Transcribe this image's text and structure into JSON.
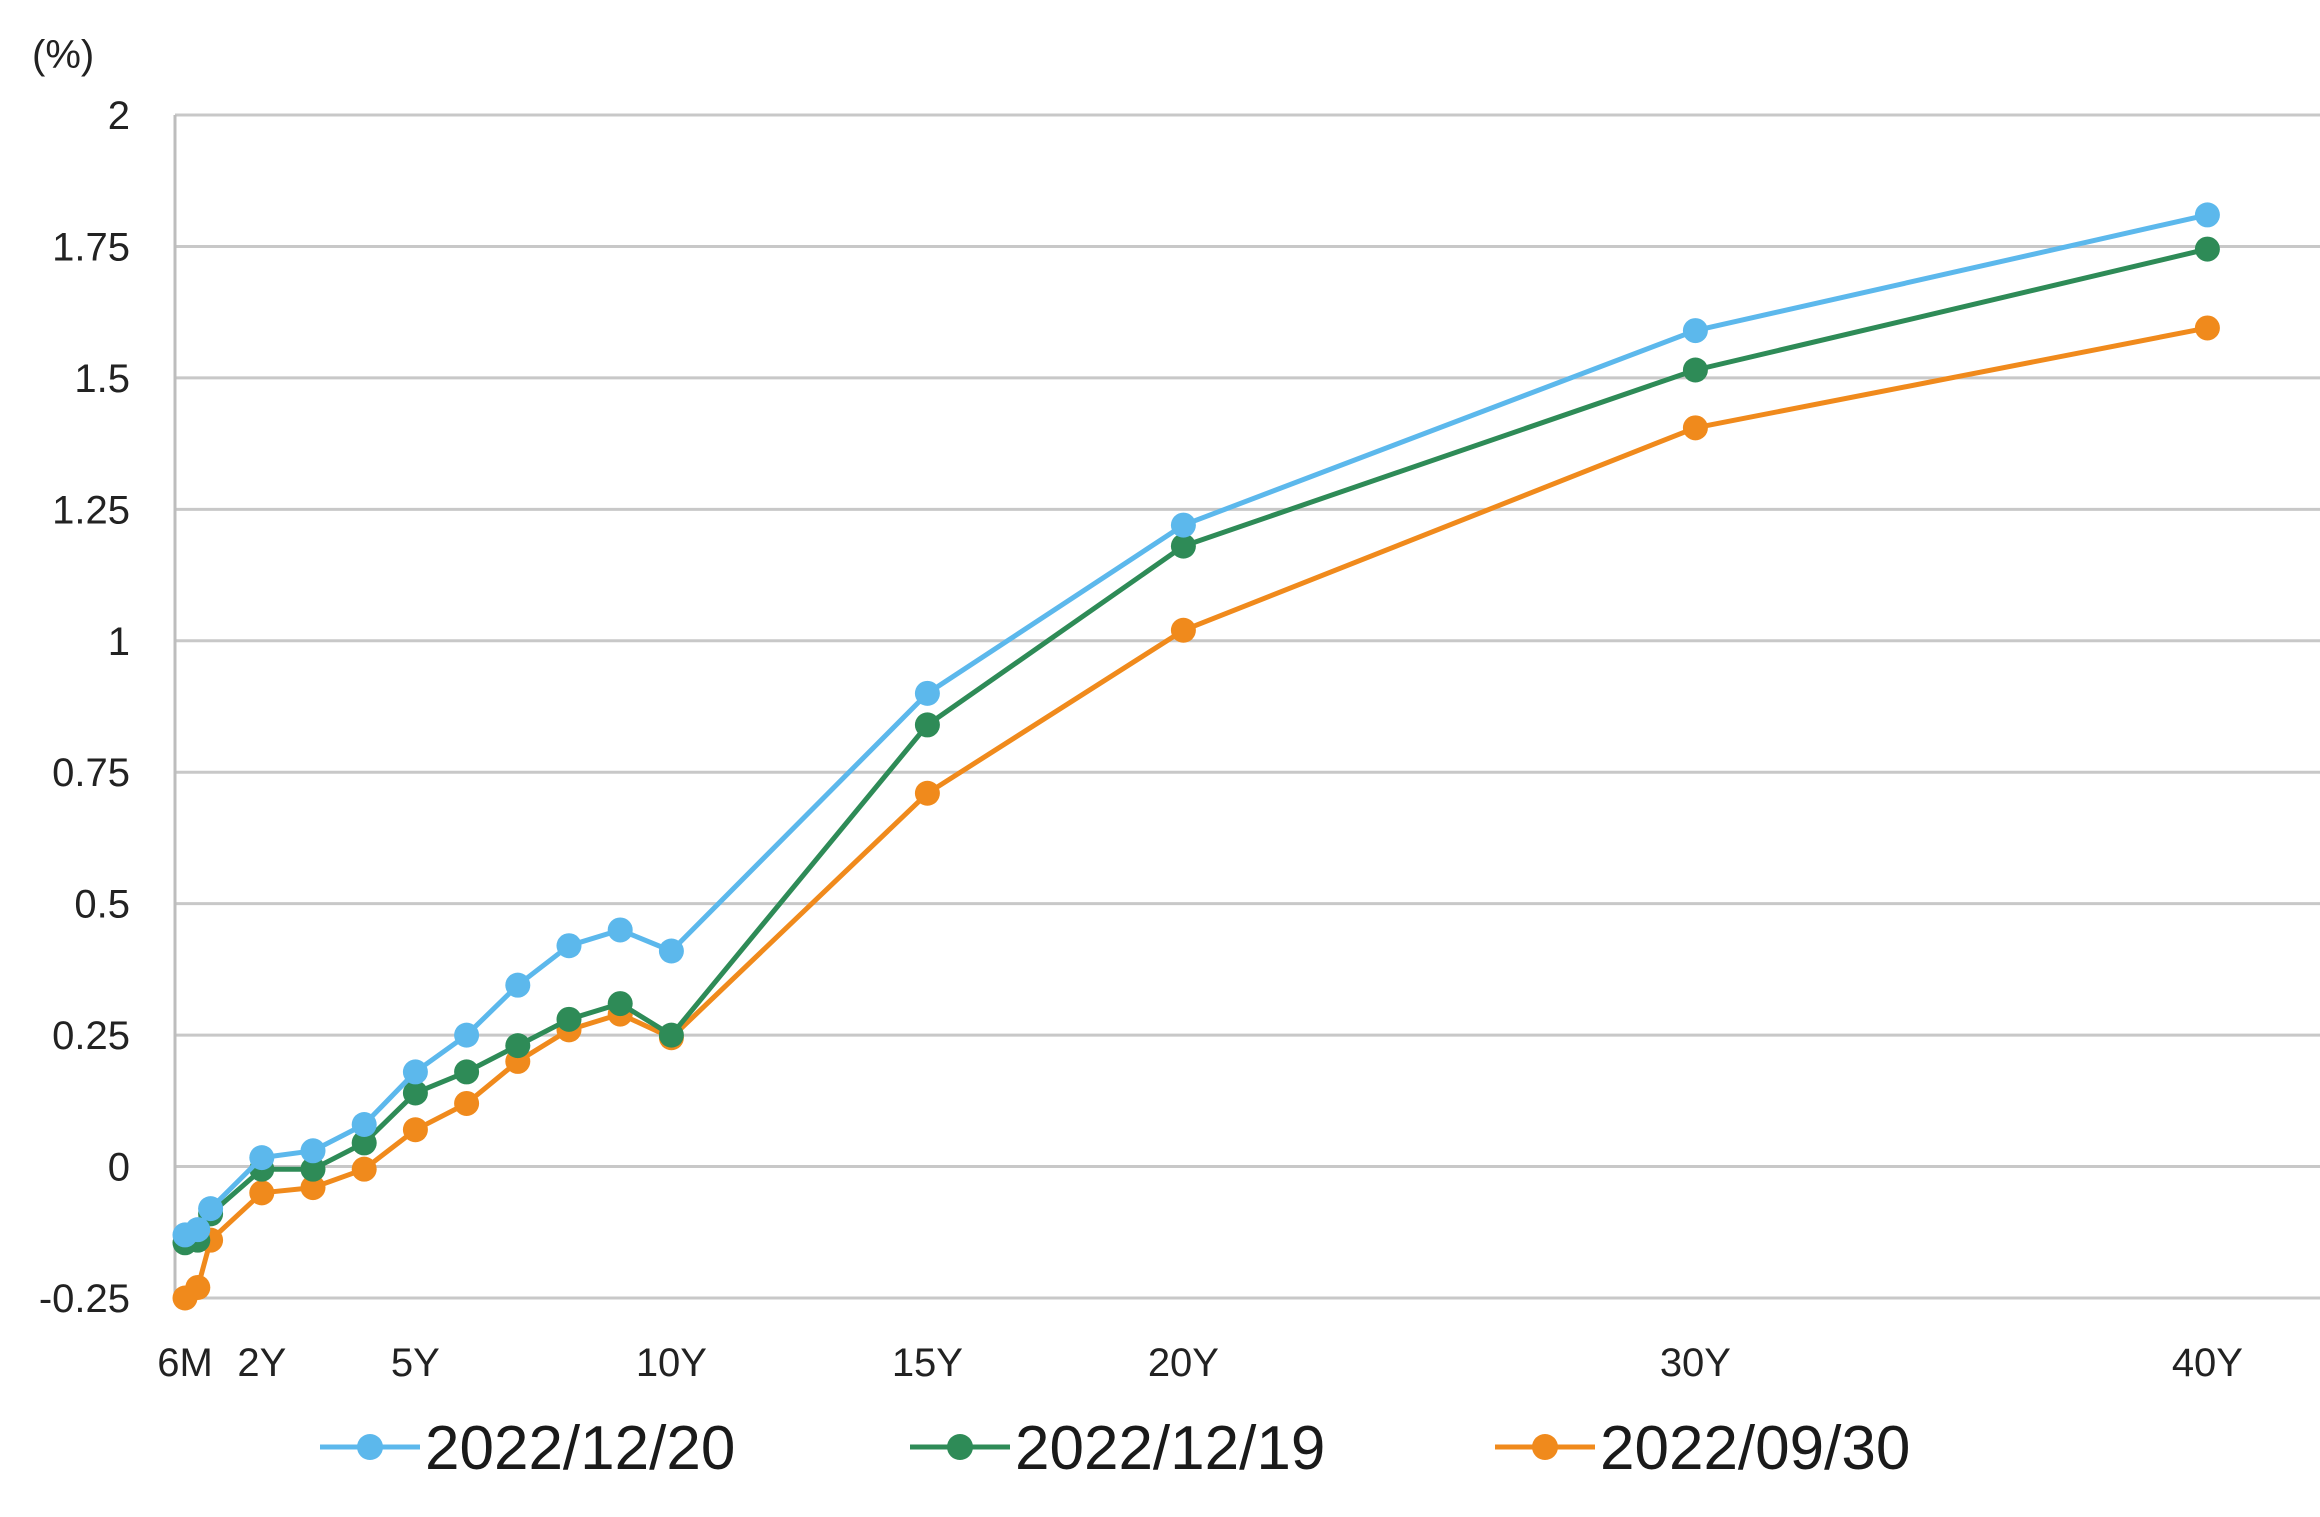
{
  "chart_data": {
    "type": "line",
    "y_unit_label": "(%)",
    "ylim": [
      -0.25,
      2
    ],
    "y_ticks": [
      -0.25,
      0,
      0.25,
      0.5,
      0.75,
      1,
      1.25,
      1.5,
      1.75,
      2
    ],
    "y_tick_labels": [
      "-0.25",
      "0",
      "0.25",
      "0.5",
      "0.75",
      "1",
      "1.25",
      "1.5",
      "1.75",
      "2"
    ],
    "xlim": [
      0.5,
      40.5
    ],
    "x_ticks": [
      {
        "value": 0.5,
        "label": "6M"
      },
      {
        "value": 2,
        "label": "2Y"
      },
      {
        "value": 5,
        "label": "5Y"
      },
      {
        "value": 10,
        "label": "10Y"
      },
      {
        "value": 15,
        "label": "15Y"
      },
      {
        "value": 20,
        "label": "20Y"
      },
      {
        "value": 30,
        "label": "30Y"
      },
      {
        "value": 40,
        "label": "40Y"
      }
    ],
    "x": [
      0.5,
      0.75,
      1,
      2,
      3,
      4,
      5,
      6,
      7,
      8,
      9,
      10,
      15,
      20,
      30,
      40
    ],
    "grid": true,
    "legend_position": "bottom",
    "series": [
      {
        "name": "2022/12/20",
        "color": "#5cb8ec",
        "values": [
          -0.13,
          -0.12,
          -0.08,
          0.017,
          0.03,
          0.08,
          0.18,
          0.25,
          0.345,
          0.42,
          0.45,
          0.41,
          0.9,
          1.22,
          1.59,
          1.81
        ]
      },
      {
        "name": "2022/12/19",
        "color": "#2e8b57",
        "values": [
          -0.145,
          -0.14,
          -0.09,
          -0.005,
          -0.005,
          0.045,
          0.14,
          0.18,
          0.23,
          0.28,
          0.31,
          0.25,
          0.84,
          1.18,
          1.515,
          1.745
        ]
      },
      {
        "name": "2022/09/30",
        "color": "#f08a1c",
        "values": [
          -0.25,
          -0.23,
          -0.14,
          -0.05,
          -0.04,
          -0.005,
          0.07,
          0.12,
          0.2,
          0.26,
          0.29,
          0.245,
          0.71,
          1.02,
          1.405,
          1.595
        ]
      }
    ]
  }
}
